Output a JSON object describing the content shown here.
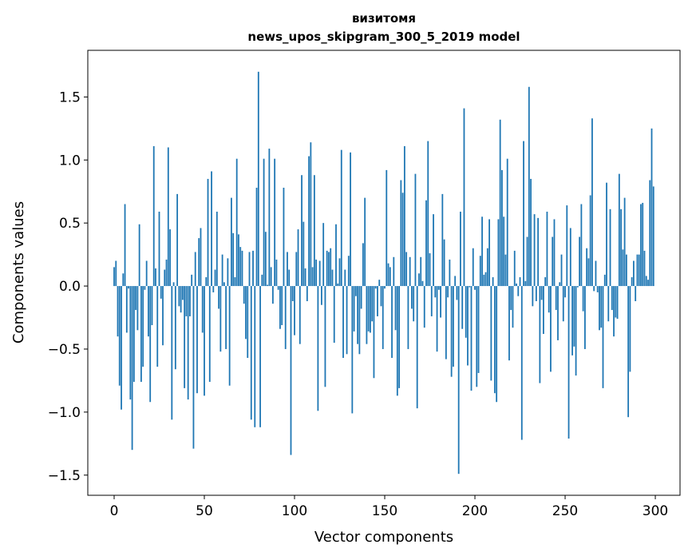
{
  "chart_data": {
    "type": "bar",
    "title": [
      "визитомя",
      "news_upos_skipgram_300_5_2019 model"
    ],
    "xlabel": "Vector components",
    "ylabel": "Components values",
    "xlim": [
      -14.6,
      313.7
    ],
    "ylim": [
      -1.66,
      1.87
    ],
    "xticks": [
      0,
      50,
      100,
      150,
      200,
      250,
      300
    ],
    "xtick_labels": [
      "0",
      "50",
      "100",
      "150",
      "200",
      "250",
      "300"
    ],
    "yticks": [
      -1.5,
      -1.0,
      -0.5,
      0.0,
      0.5,
      1.0,
      1.5
    ],
    "ytick_labels": [
      "−1.5",
      "−1.0",
      "−0.5",
      "0.0",
      "0.5",
      "1.0",
      "1.5"
    ],
    "grid": false,
    "bar_color": "#1f77b4",
    "values": [
      0.15,
      0.2,
      -0.4,
      -0.79,
      -0.98,
      0.1,
      0.65,
      -0.37,
      -0.02,
      -0.9,
      -1.3,
      -0.76,
      -0.19,
      -0.35,
      0.49,
      -0.76,
      -0.64,
      -0.03,
      0.2,
      -0.4,
      -0.92,
      -0.31,
      1.11,
      0.14,
      -0.64,
      0.59,
      -0.1,
      -0.47,
      0.13,
      0.21,
      1.1,
      0.45,
      -1.06,
      0.03,
      -0.66,
      0.73,
      -0.16,
      -0.21,
      -0.11,
      -0.81,
      -0.24,
      -0.9,
      -0.24,
      0.09,
      -1.29,
      0.27,
      -0.85,
      0.38,
      0.46,
      -0.37,
      -0.87,
      0.07,
      0.85,
      -0.76,
      0.91,
      -0.05,
      0.13,
      0.59,
      -0.18,
      -0.52,
      0.25,
      0.03,
      -0.5,
      0.22,
      -0.79,
      0.7,
      0.42,
      0.07,
      1.01,
      0.41,
      0.31,
      0.28,
      -0.14,
      -0.42,
      -0.57,
      0.27,
      -1.06,
      0.28,
      -1.12,
      0.78,
      1.7,
      -1.12,
      0.09,
      1.01,
      0.43,
      0.01,
      1.09,
      0.15,
      -0.14,
      1.01,
      0.21,
      -0.03,
      -0.34,
      -0.31,
      0.78,
      -0.5,
      0.27,
      0.13,
      -1.34,
      -0.12,
      -0.39,
      0.27,
      0.45,
      -0.46,
      0.88,
      0.51,
      0.14,
      -0.12,
      1.03,
      1.14,
      0.15,
      0.88,
      0.21,
      -0.99,
      0.2,
      -0.15,
      0.5,
      -0.8,
      0.28,
      0.27,
      0.3,
      0.13,
      -0.45,
      0.49,
      0.02,
      0.22,
      1.08,
      -0.57,
      0.13,
      -0.54,
      0.24,
      1.06,
      -1.01,
      -0.36,
      -0.08,
      -0.46,
      -0.54,
      -0.18,
      0.34,
      0.7,
      -0.46,
      -0.36,
      -0.37,
      -0.28,
      -0.73,
      -0.02,
      -0.24,
      0.05,
      -0.16,
      -0.5,
      -0.02,
      0.92,
      0.18,
      0.15,
      -0.57,
      0.23,
      -0.35,
      -0.87,
      -0.81,
      0.84,
      0.74,
      1.11,
      0.27,
      -0.5,
      0.23,
      -0.18,
      -0.28,
      0.89,
      -0.97,
      0.1,
      0.23,
      0.04,
      -0.33,
      0.68,
      1.15,
      0.26,
      -0.24,
      0.57,
      -0.09,
      -0.52,
      -0.03,
      -0.25,
      0.73,
      0.37,
      -0.58,
      -0.09,
      0.21,
      -0.72,
      -0.64,
      0.08,
      -0.11,
      -1.49,
      0.59,
      -0.34,
      1.41,
      -0.41,
      -0.63,
      -0.01,
      -0.83,
      0.3,
      -0.03,
      -0.8,
      -0.69,
      0.24,
      0.55,
      0.09,
      0.11,
      0.3,
      0.53,
      -0.75,
      0.07,
      -0.85,
      -0.92,
      0.53,
      1.32,
      0.92,
      0.55,
      0.25,
      1.01,
      -0.59,
      -0.19,
      -0.33,
      0.28,
      0.02,
      -0.08,
      0.07,
      -1.22,
      1.15,
      0.04,
      0.39,
      1.58,
      0.85,
      -0.16,
      0.57,
      -0.12,
      0.54,
      -0.77,
      -0.11,
      -0.38,
      0.07,
      0.59,
      -0.21,
      -0.68,
      0.39,
      0.53,
      -0.19,
      -0.43,
      0.03,
      0.25,
      -0.28,
      -0.09,
      0.64,
      -1.21,
      0.46,
      -0.55,
      -0.48,
      -0.71,
      -0.01,
      0.39,
      0.65,
      -0.2,
      -0.5,
      0.3,
      0.22,
      0.72,
      1.33,
      -0.04,
      0.2,
      -0.05,
      -0.35,
      -0.33,
      -0.81,
      0.09,
      0.82,
      -0.28,
      0.61,
      -0.19,
      -0.4,
      -0.25,
      -0.26,
      0.89,
      0.61,
      0.29,
      0.7,
      0.25,
      -1.04,
      -0.68,
      0.07,
      0.2,
      -0.12,
      0.25,
      0.25,
      0.65,
      0.66,
      0.28,
      0.08,
      0.05,
      0.84,
      1.25,
      0.79
    ]
  }
}
